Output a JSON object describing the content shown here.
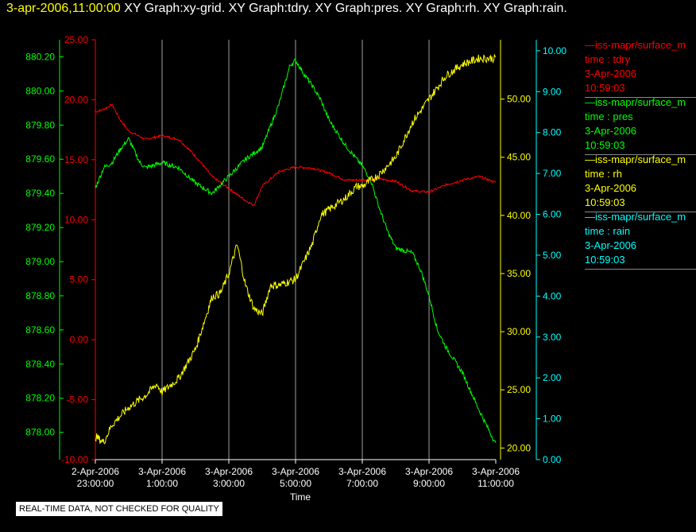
{
  "header": {
    "timestamp": "3-apr-2006,11:00:00",
    "titles": "XY Graph:xy-grid.  XY Graph:tdry.  XY Graph:pres.  XY Graph:rh.  XY Graph:rain."
  },
  "legend": [
    {
      "name": "—iss-mapr/surface_m",
      "field": "time : tdry",
      "date": "3-Apr-2006",
      "time": "10:59:03",
      "color": "#ff0000"
    },
    {
      "name": "—iss-mapr/surface_m",
      "field": "time : pres",
      "date": "3-Apr-2006",
      "time": "10:59:03",
      "color": "#00ff00"
    },
    {
      "name": "—iss-mapr/surface_m",
      "field": "time : rh",
      "date": "3-Apr-2006",
      "time": "10:59:03",
      "color": "#ffff00"
    },
    {
      "name": "—iss-mapr/surface_m",
      "field": "time : rain",
      "date": "3-Apr-2006",
      "time": "10:59:03",
      "color": "#00ffff"
    }
  ],
  "quality_note": "REAL-TIME DATA, NOT CHECKED FOR QUALITY",
  "chart_data": {
    "type": "line",
    "xlabel": "Time",
    "x_range": [
      "2-Apr-2006 23:00:00",
      "3-Apr-2006 11:00:00"
    ],
    "x_ticks": [
      {
        "date": "2-Apr-2006",
        "time": "23:00:00"
      },
      {
        "date": "3-Apr-2006",
        "time": "1:00:00"
      },
      {
        "date": "3-Apr-2006",
        "time": "3:00:00"
      },
      {
        "date": "3-Apr-2006",
        "time": "5:00:00"
      },
      {
        "date": "3-Apr-2006",
        "time": "7:00:00"
      },
      {
        "date": "3-Apr-2006",
        "time": "9:00:00"
      },
      {
        "date": "3-Apr-2006",
        "time": "11:00:00"
      }
    ],
    "grid": "vertical",
    "axes": {
      "pres": {
        "side": "left-outer",
        "color": "#00ff00",
        "ylim": [
          877.84,
          880.3
        ],
        "ticks": [
          "880.20",
          "880.00",
          "879.80",
          "879.60",
          "879.40",
          "879.20",
          "879.00",
          "878.80",
          "878.60",
          "878.40",
          "878.20",
          "878.00"
        ]
      },
      "tdry": {
        "side": "left-inner",
        "color": "#ff0000",
        "ylim": [
          -10,
          25
        ],
        "ticks": [
          "25.00",
          "20.00",
          "15.00",
          "10.00",
          "5.00",
          "0.00",
          "-5.00",
          "-10.00"
        ]
      },
      "rh": {
        "side": "right-inner",
        "color": "#ffff00",
        "ylim": [
          19,
          55.1
        ],
        "ticks": [
          "50.00",
          "45.00",
          "40.00",
          "35.00",
          "30.00",
          "25.00",
          "20.00"
        ]
      },
      "rain": {
        "side": "right-outer",
        "color": "#00ffff",
        "ylim": [
          0,
          10.27
        ],
        "ticks": [
          "10.00",
          "9.00",
          "8.00",
          "7.00",
          "6.00",
          "5.00",
          "4.00",
          "3.00",
          "2.00",
          "1.00",
          "0.00"
        ]
      }
    },
    "series": [
      {
        "name": "tdry",
        "axis": "tdry",
        "color": "#ff0000",
        "x": [
          "23:00",
          "23:15",
          "23:30",
          "23:45",
          "0:00",
          "0:30",
          "1:00",
          "1:30",
          "2:00",
          "2:30",
          "3:00",
          "3:30",
          "3:45",
          "4:00",
          "4:30",
          "5:00",
          "5:30",
          "6:00",
          "6:30",
          "7:00",
          "7:30",
          "8:00",
          "8:30",
          "9:00",
          "9:30",
          "10:00",
          "10:30",
          "11:00"
        ],
        "values": [
          19.0,
          19.2,
          19.6,
          18.3,
          17.4,
          16.7,
          17.0,
          16.7,
          15.3,
          13.6,
          12.6,
          11.6,
          11.2,
          12.8,
          14.0,
          14.4,
          14.3,
          13.9,
          13.3,
          13.3,
          13.4,
          13.2,
          12.4,
          12.3,
          12.9,
          13.3,
          13.6,
          13.1
        ]
      },
      {
        "name": "pres",
        "axis": "pres",
        "color": "#00ff00",
        "x": [
          "23:00",
          "23:15",
          "23:30",
          "23:45",
          "0:00",
          "0:20",
          "0:30",
          "1:00",
          "1:30",
          "2:00",
          "2:30",
          "3:00",
          "3:30",
          "4:00",
          "4:30",
          "4:50",
          "5:00",
          "5:15",
          "5:30",
          "5:45",
          "6:00",
          "6:30",
          "7:00",
          "7:15",
          "7:30",
          "7:45",
          "8:00",
          "8:30",
          "8:45",
          "9:00",
          "9:15",
          "9:30",
          "10:00",
          "10:30",
          "11:00"
        ],
        "values": [
          879.43,
          879.55,
          879.58,
          879.66,
          879.72,
          879.58,
          879.55,
          879.58,
          879.55,
          879.46,
          879.4,
          879.5,
          879.6,
          879.67,
          879.92,
          880.15,
          880.18,
          880.1,
          880.03,
          879.95,
          879.83,
          879.68,
          879.56,
          879.48,
          879.32,
          879.18,
          879.08,
          879.05,
          878.95,
          878.8,
          878.6,
          878.5,
          878.35,
          878.13,
          877.93
        ]
      },
      {
        "name": "rh",
        "axis": "rh",
        "color": "#ffff00",
        "x": [
          "23:00",
          "23:15",
          "23:30",
          "0:00",
          "0:30",
          "0:50",
          "1:00",
          "1:30",
          "2:00",
          "2:30",
          "2:45",
          "3:00",
          "3:15",
          "3:30",
          "3:45",
          "4:00",
          "4:15",
          "4:30",
          "5:00",
          "5:30",
          "5:45",
          "6:00",
          "6:30",
          "6:50",
          "7:00",
          "7:30",
          "8:00",
          "8:30",
          "9:00",
          "9:30",
          "10:00",
          "10:30",
          "11:00"
        ],
        "values": [
          21.0,
          20.5,
          22.0,
          23.5,
          24.5,
          25.5,
          24.8,
          26.0,
          28.5,
          33.0,
          33.3,
          35.0,
          37.5,
          34.0,
          32.0,
          31.5,
          34.0,
          34.0,
          34.5,
          37.5,
          40.0,
          40.5,
          41.5,
          42.5,
          42.5,
          43.5,
          45.0,
          48.0,
          50.0,
          52.0,
          53.0,
          53.5,
          53.5
        ]
      },
      {
        "name": "rain",
        "axis": "rain",
        "color": "#00ffff",
        "x": [
          "23:00",
          "11:00"
        ],
        "values": [
          0.0,
          0.0
        ]
      }
    ]
  }
}
